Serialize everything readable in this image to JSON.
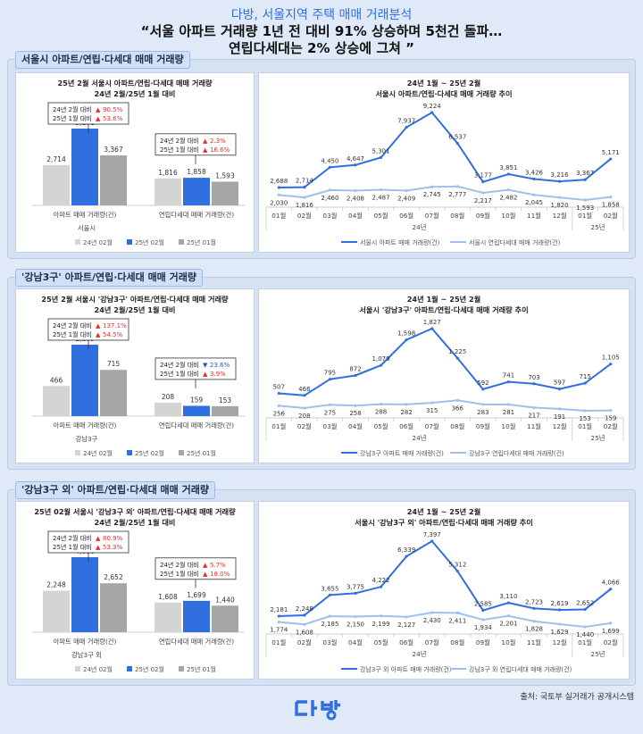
{
  "header": {
    "subtitle": "다방, 서울지역 주택 매매 거래분석",
    "title_line1": "“서울 아파트 거래량 1년 전 대비 91% 상승하며 5천건 돌파…",
    "title_line2": "연립다세대는 2% 상승에 그쳐 ”"
  },
  "footer": {
    "source": "출처: 국토부 실거래가 공개시스템",
    "logo_text": "다방"
  },
  "colors": {
    "accent": "#2f6fe0",
    "gray_light": "#d4d4d4",
    "gray_dark": "#a6a6a6",
    "line_light": "#9ec0ea",
    "up": "#e03030",
    "down": "#2f50c8"
  },
  "sections": [
    {
      "tag": "서울시 아파트/연립·다세대 매매 거래량",
      "bar": {
        "title1": "25년 2월 서울시 아파트/연립·다세대 매매 거래량",
        "title2": "24년 2월/25년 1월 대비",
        "group_label": "서울시",
        "categories": [
          "아파트 매매 거래량(건)",
          "연립다세대 매매 거래량(건)"
        ],
        "series": [
          {
            "name": "24년 02월",
            "values": [
              2714,
              1816
            ]
          },
          {
            "name": "25년 02월",
            "values": [
              5171,
              1858
            ]
          },
          {
            "name": "25년 01월",
            "values": [
              3367,
              1593
            ]
          }
        ],
        "value_labels": [
          [
            "2,714",
            "1,816"
          ],
          [
            "5,171",
            "1,858"
          ],
          [
            "3,367",
            "1,593"
          ]
        ],
        "callouts": [
          {
            "l1": "24년 2월 대비",
            "a1": "▲",
            "v1": "90.5%",
            "l2": "25년 1월 대비",
            "a2": "▲",
            "v2": "53.6%",
            "d1": "up",
            "d2": "up"
          },
          {
            "l1": "24년 2월 대비",
            "a1": "▲",
            "v1": "2.3%",
            "l2": "25년 1월 대비",
            "a2": "▲",
            "v2": "16.6%",
            "d1": "up",
            "d2": "up"
          }
        ]
      },
      "line": {
        "title1": "24년 1월 ~ 25년 2월",
        "title2": "서울시 아파트/연립·다세대 매매 거래량 추이",
        "x": [
          "01월",
          "02월",
          "03월",
          "04월",
          "05월",
          "06월",
          "07월",
          "08월",
          "09월",
          "10월",
          "11월",
          "12월",
          "01월",
          "02월"
        ],
        "year_labels": [
          "24년",
          "25년"
        ],
        "series": [
          {
            "name": "서울시 아파트 매매 거래량(건)",
            "values": [
              2688,
              2714,
              4450,
              4647,
              5301,
              7937,
              9224,
              6537,
              3177,
              3851,
              3426,
              3216,
              3367,
              5171
            ],
            "labels": [
              "2,688",
              "2,714",
              "4,450",
              "4,647",
              "5,301",
              "7,937",
              "9,224",
              "6,537",
              "3,177",
              "3,851",
              "3,426",
              "3,216",
              "3,367",
              "5,171"
            ]
          },
          {
            "name": "서울시 연립다세대 매매 거래량(건)",
            "values": [
              2030,
              1816,
              2460,
              2408,
              2487,
              2409,
              2745,
              2777,
              2217,
              2482,
              2045,
              1820,
              1593,
              1858
            ],
            "labels": [
              "2,030",
              "1,816",
              "2,460",
              "2,408",
              "2,487",
              "2,409",
              "2,745",
              "2,777",
              "2,217",
              "2,482",
              "2,045",
              "1,820",
              "1,593",
              "1,858"
            ]
          }
        ]
      }
    },
    {
      "tag": "'강남3구' 아파트/연립·다세대 매매 거래량",
      "bar": {
        "title1": "25년 2월 서울시 '강남3구' 아파트/연립·다세대 매매 거래량",
        "title2": "24년 2월/25년 1월 대비",
        "group_label": "강남3구",
        "categories": [
          "아파트 매매 거래량(건)",
          "연립다세대 매매 거래량(건)"
        ],
        "series": [
          {
            "name": "24년 02월",
            "values": [
              466,
              208
            ]
          },
          {
            "name": "25년 02월",
            "values": [
              1105,
              159
            ]
          },
          {
            "name": "25년 01월",
            "values": [
              715,
              153
            ]
          }
        ],
        "value_labels": [
          [
            "466",
            "208"
          ],
          [
            "1,105",
            "159"
          ],
          [
            "715",
            "153"
          ]
        ],
        "callouts": [
          {
            "l1": "24년 2월 대비",
            "a1": "▲",
            "v1": "137.1%",
            "l2": "25년 1월 대비",
            "a2": "▲",
            "v2": "54.5%",
            "d1": "up",
            "d2": "up"
          },
          {
            "l1": "24년 2월 대비",
            "a1": "▼",
            "v1": "23.6%",
            "l2": "25년 1월 대비",
            "a2": "▲",
            "v2": "3.9%",
            "d1": "down",
            "d2": "up"
          }
        ]
      },
      "line": {
        "title1": "24년 1월 ~ 25년 2월",
        "title2": "서울시 '강남3구' 아파트/연립·다세대 매매 거래량 추이",
        "x": [
          "01월",
          "02월",
          "03월",
          "04월",
          "05월",
          "06월",
          "07월",
          "08월",
          "09월",
          "10월",
          "11월",
          "12월",
          "01월",
          "02월"
        ],
        "year_labels": [
          "24년",
          "25년"
        ],
        "series": [
          {
            "name": "강남3구 아파트 매매 거래량(건)",
            "values": [
              507,
              466,
              795,
              872,
              1079,
              1598,
              1827,
              1225,
              592,
              741,
              703,
              597,
              715,
              1105
            ],
            "labels": [
              "507",
              "466",
              "795",
              "872",
              "1,079",
              "1,598",
              "1,827",
              "1,225",
              "592",
              "741",
              "703",
              "597",
              "715",
              "1,105"
            ]
          },
          {
            "name": "강남3구 연립다세대 매매 거래량(건)",
            "values": [
              256,
              208,
              275,
              258,
              288,
              282,
              315,
              366,
              283,
              281,
              217,
              191,
              153,
              159
            ],
            "labels": [
              "256",
              "208",
              "275",
              "258",
              "288",
              "282",
              "315",
              "366",
              "283",
              "281",
              "217",
              "191",
              "153",
              "159"
            ]
          }
        ]
      }
    },
    {
      "tag": "'강남3구 외' 아파트/연립·다세대 매매 거래량",
      "bar": {
        "title1": "25년 02월 서울시 '강남3구 외' 아파트/연립·다세대 매매 거래량",
        "title2": "24년 2월/25년 1월 대비",
        "group_label": "강남3구 외",
        "categories": [
          "아파트 매매 거래량(건)",
          "연립다세대 매매 거래량(건)"
        ],
        "series": [
          {
            "name": "24년 02월",
            "values": [
              2248,
              1608
            ]
          },
          {
            "name": "25년 02월",
            "values": [
              4066,
              1699
            ]
          },
          {
            "name": "25년 01월",
            "values": [
              2652,
              1440
            ]
          }
        ],
        "value_labels": [
          [
            "2,248",
            "1,608"
          ],
          [
            "4,066",
            "1,699"
          ],
          [
            "2,652",
            "1,440"
          ]
        ],
        "callouts": [
          {
            "l1": "24년 2월 대비",
            "a1": "▲",
            "v1": "80.9%",
            "l2": "25년 1월 대비",
            "a2": "▲",
            "v2": "53.3%",
            "d1": "up",
            "d2": "up"
          },
          {
            "l1": "24년 2월 대비",
            "a1": "▲",
            "v1": "5.7%",
            "l2": "25년 1월 대비",
            "a2": "▲",
            "v2": "18.0%",
            "d1": "up",
            "d2": "up"
          }
        ]
      },
      "line": {
        "title1": "24년 1월 ~ 25년 2월",
        "title2": "서울시 '강남3구 외' 아파트/연립·다세대 매매 거래량 추이",
        "x": [
          "01월",
          "02월",
          "03월",
          "04월",
          "05월",
          "06월",
          "07월",
          "08월",
          "09월",
          "10월",
          "11월",
          "12월",
          "01월",
          "02월"
        ],
        "year_labels": [
          "24년",
          "25년"
        ],
        "series": [
          {
            "name": "강남3구 외 아파트 매매 거래량(건)",
            "values": [
              2181,
              2248,
              3655,
              3775,
              4222,
              6339,
              7397,
              5312,
              2585,
              3110,
              2723,
              2619,
              2652,
              4066
            ],
            "labels": [
              "2,181",
              "2,248",
              "3,655",
              "3,775",
              "4,222",
              "6,339",
              "7,397",
              "5,312",
              "2,585",
              "3,110",
              "2,723",
              "2,619",
              "2,652",
              "4,066"
            ]
          },
          {
            "name": "강남3구 외 연립다세대 매매 거래량(건)",
            "values": [
              1774,
              1608,
              2185,
              2150,
              2199,
              2127,
              2430,
              2411,
              1934,
              2201,
              1828,
              1629,
              1440,
              1699
            ],
            "labels": [
              "1,774",
              "1,608",
              "2,185",
              "2,150",
              "2,199",
              "2,127",
              "2,430",
              "2,411",
              "1,934",
              "2,201",
              "1,828",
              "1,629",
              "1,440",
              "1,699"
            ]
          }
        ]
      }
    }
  ],
  "chart_data": [
    {
      "type": "bar",
      "title": "25년 2월 서울시 아파트/연립·다세대 매매 거래량",
      "subtitle": "24년 2월/25년 1월 대비",
      "categories": [
        "아파트 매매 거래량(건)",
        "연립다세대 매매 거래량(건)"
      ],
      "series": [
        {
          "name": "24년 02월",
          "values": [
            2714,
            1816
          ]
        },
        {
          "name": "25년 02월",
          "values": [
            5171,
            1858
          ]
        },
        {
          "name": "25년 01월",
          "values": [
            3367,
            1593
          ]
        }
      ],
      "legend": "bottom"
    },
    {
      "type": "line",
      "title": "24년 1월 ~ 25년 2월",
      "subtitle": "서울시 아파트/연립·다세대 매매 거래량 추이",
      "x": [
        "01월",
        "02월",
        "03월",
        "04월",
        "05월",
        "06월",
        "07월",
        "08월",
        "09월",
        "10월",
        "11월",
        "12월",
        "01월",
        "02월"
      ],
      "series": [
        {
          "name": "서울시 아파트 매매 거래량(건)",
          "values": [
            2688,
            2714,
            4450,
            4647,
            5301,
            7937,
            9224,
            6537,
            3177,
            3851,
            3426,
            3216,
            3367,
            5171
          ]
        },
        {
          "name": "서울시 연립다세대 매매 거래량(건)",
          "values": [
            2030,
            1816,
            2460,
            2408,
            2487,
            2409,
            2745,
            2777,
            2217,
            2482,
            2045,
            1820,
            1593,
            1858
          ]
        }
      ],
      "legend": "bottom"
    },
    {
      "type": "bar",
      "title": "25년 2월 서울시 '강남3구' 아파트/연립·다세대 매매 거래량",
      "subtitle": "24년 2월/25년 1월 대비",
      "categories": [
        "아파트 매매 거래량(건)",
        "연립다세대 매매 거래량(건)"
      ],
      "series": [
        {
          "name": "24년 02월",
          "values": [
            466,
            208
          ]
        },
        {
          "name": "25년 02월",
          "values": [
            1105,
            159
          ]
        },
        {
          "name": "25년 01월",
          "values": [
            715,
            153
          ]
        }
      ],
      "legend": "bottom"
    },
    {
      "type": "line",
      "title": "24년 1월 ~ 25년 2월",
      "subtitle": "서울시 '강남3구' 아파트/연립·다세대 매매 거래량 추이",
      "x": [
        "01월",
        "02월",
        "03월",
        "04월",
        "05월",
        "06월",
        "07월",
        "08월",
        "09월",
        "10월",
        "11월",
        "12월",
        "01월",
        "02월"
      ],
      "series": [
        {
          "name": "강남3구 아파트 매매 거래량(건)",
          "values": [
            507,
            466,
            795,
            872,
            1079,
            1598,
            1827,
            1225,
            592,
            741,
            703,
            597,
            715,
            1105
          ]
        },
        {
          "name": "강남3구 연립다세대 매매 거래량(건)",
          "values": [
            256,
            208,
            275,
            258,
            288,
            282,
            315,
            366,
            283,
            281,
            217,
            191,
            153,
            159
          ]
        }
      ],
      "legend": "bottom"
    },
    {
      "type": "bar",
      "title": "25년 02월 서울시 '강남3구 외' 아파트/연립·다세대 매매 거래량",
      "subtitle": "24년 2월/25년 1월 대비",
      "categories": [
        "아파트 매매 거래량(건)",
        "연립다세대 매매 거래량(건)"
      ],
      "series": [
        {
          "name": "24년 02월",
          "values": [
            2248,
            1608
          ]
        },
        {
          "name": "25년 02월",
          "values": [
            4066,
            1699
          ]
        },
        {
          "name": "25년 01월",
          "values": [
            2652,
            1440
          ]
        }
      ],
      "legend": "bottom"
    },
    {
      "type": "line",
      "title": "24년 1월 ~ 25년 2월",
      "subtitle": "서울시 '강남3구 외' 아파트/연립·다세대 매매 거래량 추이",
      "x": [
        "01월",
        "02월",
        "03월",
        "04월",
        "05월",
        "06월",
        "07월",
        "08월",
        "09월",
        "10월",
        "11월",
        "12월",
        "01월",
        "02월"
      ],
      "series": [
        {
          "name": "강남3구 외 아파트 매매 거래량(건)",
          "values": [
            2181,
            2248,
            3655,
            3775,
            4222,
            6339,
            7397,
            5312,
            2585,
            3110,
            2723,
            2619,
            2652,
            4066
          ]
        },
        {
          "name": "강남3구 외 연립다세대 매매 거래량(건)",
          "values": [
            1774,
            1608,
            2185,
            2150,
            2199,
            2127,
            2430,
            2411,
            1934,
            2201,
            1828,
            1629,
            1440,
            1699
          ]
        }
      ],
      "legend": "bottom"
    }
  ]
}
